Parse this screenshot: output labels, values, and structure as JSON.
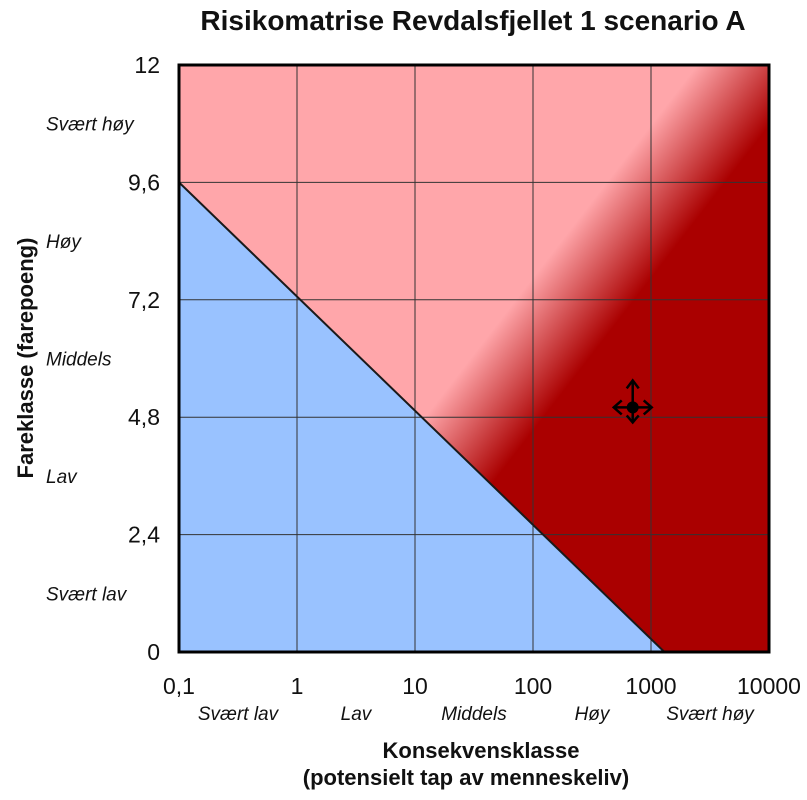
{
  "chart_data": {
    "type": "heatmap",
    "title": "Risikomatrise Revdalsfjellet 1 scenario A",
    "xlabel_line1": "Konsekvensklasse",
    "xlabel_line2": "(potensielt tap av menneskeliv)",
    "ylabel": "Fareklasse (farepoeng)",
    "x_scale": "log",
    "xlim": [
      0.1,
      10000
    ],
    "ylim": [
      0,
      12
    ],
    "x_ticks": [
      "0,1",
      "1",
      "10",
      "100",
      "1000",
      "10000"
    ],
    "x_tick_values": [
      0.1,
      1,
      10,
      100,
      1000,
      10000
    ],
    "y_ticks": [
      "0",
      "2,4",
      "4,8",
      "7,2",
      "9,6",
      "12"
    ],
    "y_tick_values": [
      0,
      2.4,
      4.8,
      7.2,
      9.6,
      12
    ],
    "x_classes": [
      "Svært lav",
      "Lav",
      "Middels",
      "Høy",
      "Svært høy"
    ],
    "y_classes": [
      "Svært lav",
      "Lav",
      "Middels",
      "Høy",
      "Svært høy"
    ],
    "grid": true,
    "acceptance_line": [
      [
        0.1,
        9.6
      ],
      [
        1300,
        0
      ]
    ],
    "regions": {
      "acceptable": "#99c2ff",
      "intermediate": "#ffa6aa",
      "unacceptable": "#aa0000"
    },
    "scenario_point": {
      "x": 700,
      "y": 5.0,
      "marker": "crosshair-arrows"
    }
  }
}
